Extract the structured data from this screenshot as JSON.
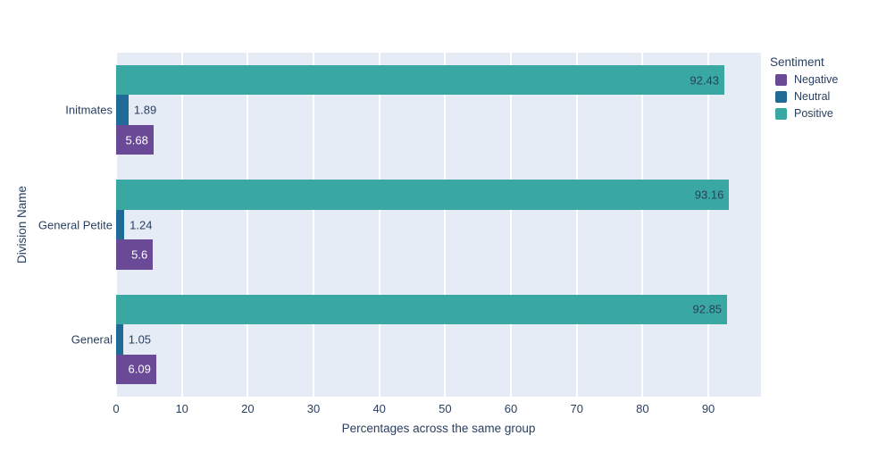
{
  "chart_data": {
    "type": "bar",
    "orientation": "horizontal",
    "xlabel": "Percentages across the same group",
    "ylabel": "Division Name",
    "legend_title": "Sentiment",
    "legend_position": "top-right",
    "grid": "white vertical gridlines on light background",
    "plot_bg_color": "#e5ecf6",
    "text_color": "#2a3f5f",
    "xlim": [
      0,
      98
    ],
    "xticks": [
      0,
      10,
      20,
      30,
      40,
      50,
      60,
      70,
      80,
      90
    ],
    "categories": [
      "Initmates",
      "General Petite",
      "General"
    ],
    "series": [
      {
        "name": "Negative",
        "color": "#6a4a97",
        "values": [
          5.68,
          5.6,
          6.09
        ],
        "labels": [
          "5.68",
          "5.6",
          "6.09"
        ]
      },
      {
        "name": "Neutral",
        "color": "#206a97",
        "values": [
          1.89,
          1.24,
          1.05
        ],
        "labels": [
          "1.89",
          "1.24",
          "1.05"
        ]
      },
      {
        "name": "Positive",
        "color": "#3aa8a2",
        "values": [
          92.43,
          93.16,
          92.85
        ],
        "labels": [
          "92.43",
          "93.16",
          "92.85"
        ]
      }
    ],
    "row_order_top_to_bottom": [
      "Positive",
      "Neutral",
      "Negative"
    ]
  }
}
